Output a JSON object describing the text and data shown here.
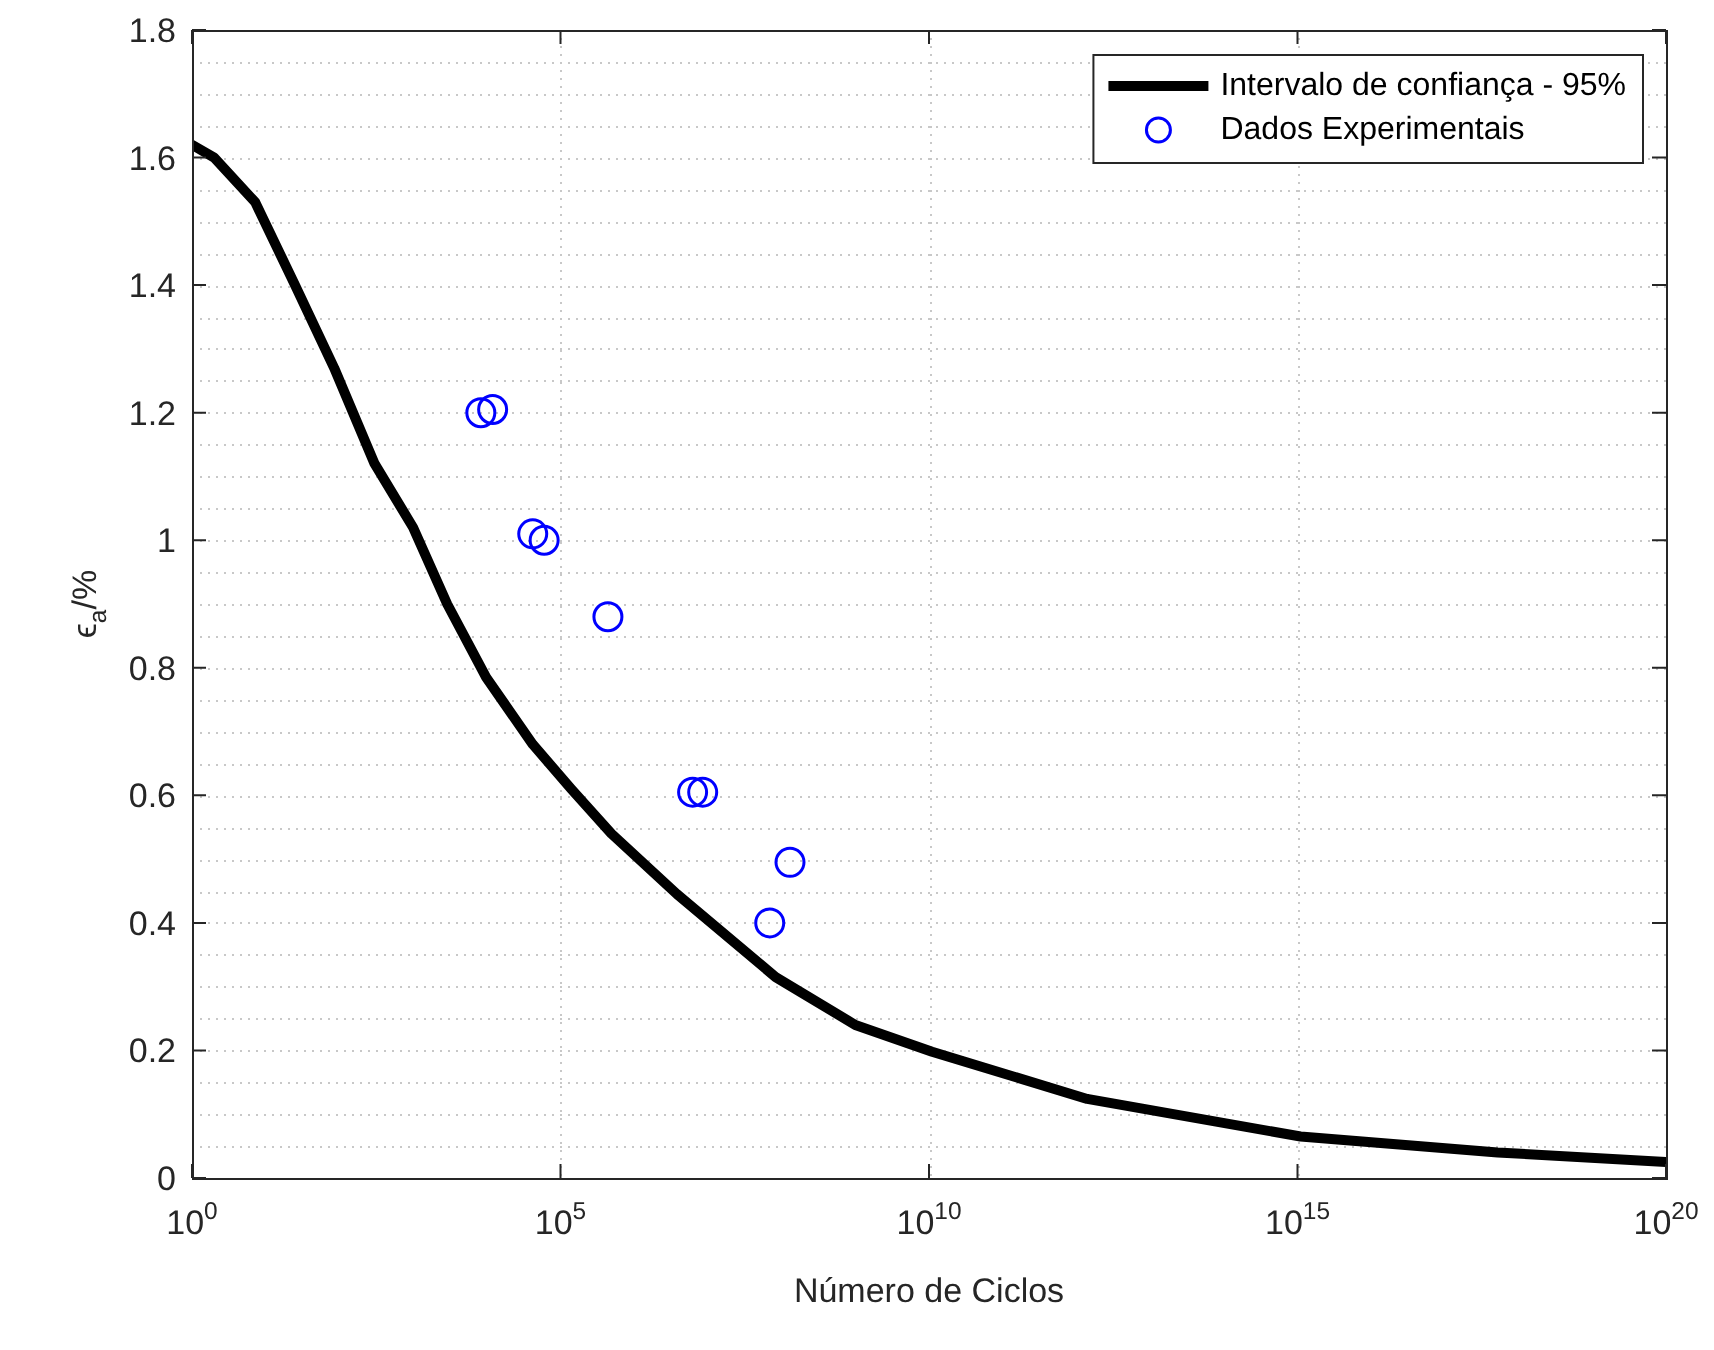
{
  "chart_data": {
    "type": "line",
    "xlabel": "Número de Ciclos",
    "ylabel": "ϵ$_{a}$/%",
    "log": "x",
    "grid": true,
    "legend": "top right",
    "xlim": [
      1,
      1e+20
    ],
    "xticks": [
      {
        "value": 1,
        "label": "10$^{0}$"
      },
      {
        "value": 100000.0,
        "label": "10$^{5}$"
      },
      {
        "value": 10000000000.0,
        "label": "10$^{10}$"
      },
      {
        "value": 1000000000000000.0,
        "label": "10$^{15}$"
      },
      {
        "value": 1e+20,
        "label": "10$^{20}$"
      }
    ],
    "ylim": [
      0,
      1.8
    ],
    "yticks": [
      0,
      0.2,
      0.4,
      0.6,
      0.8,
      1,
      1.2,
      1.4,
      1.6,
      1.8
    ],
    "series": [
      {
        "name": "Intervalo de confiança - 95%",
        "type": "line",
        "color": "#000000",
        "marker": "none",
        "line_style": "solid",
        "x": [
          1,
          2,
          7.2,
          25,
          85,
          300,
          1000,
          2900,
          9800,
          42000,
          140000,
          490000,
          3800000,
          83000000,
          1000000000.0,
          11000000000.0,
          1400000000000.0,
          1100000000000000.0,
          5.2e+17,
          1e+20
        ],
        "values": [
          1.62,
          1.6,
          1.53,
          1.4,
          1.27,
          1.12,
          1.02,
          0.9,
          0.785,
          0.68,
          0.61,
          0.54,
          0.445,
          0.315,
          0.24,
          0.198,
          0.124,
          0.065,
          0.04,
          0.025
        ]
      },
      {
        "name": "Dados Experimentais",
        "type": "scatter",
        "color": "#0000ff",
        "marker": "circle",
        "x": [
          8300,
          12000,
          42000,
          60000,
          440000,
          6200000,
          8500000,
          130000000,
          69000000
        ],
        "values": [
          1.2,
          1.205,
          1.01,
          1.0,
          0.88,
          0.605,
          0.605,
          0.495,
          0.4
        ]
      }
    ]
  }
}
